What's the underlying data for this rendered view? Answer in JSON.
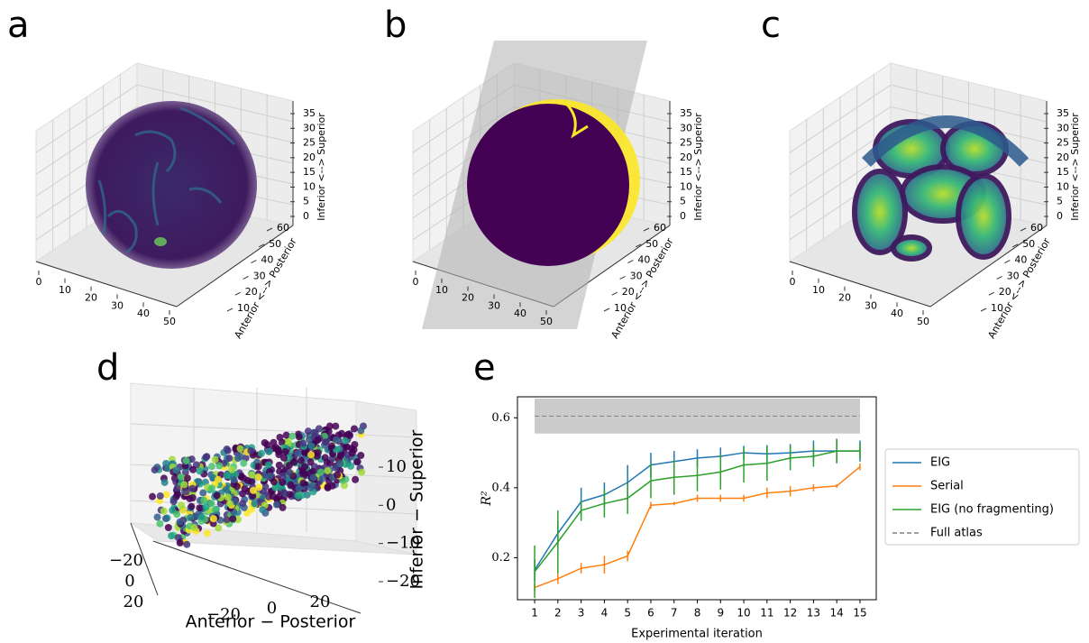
{
  "chart_data": [
    {
      "type": "volume3d",
      "panel": "a",
      "xticks": [
        0,
        10,
        20,
        30,
        40,
        50
      ],
      "yticks": [
        10,
        20,
        30,
        40,
        50,
        60
      ],
      "zticks": [
        0,
        5,
        10,
        15,
        20,
        25,
        30,
        35
      ],
      "ylabel": "Anterior <--> Posterior",
      "zlabel": "Inferior <--> Superior"
    },
    {
      "type": "volume3d",
      "panel": "b",
      "xticks": [
        0,
        10,
        20,
        30,
        40,
        50
      ],
      "yticks": [
        10,
        20,
        30,
        40,
        50,
        60
      ],
      "zticks": [
        0,
        5,
        10,
        15,
        20,
        25,
        30,
        35
      ],
      "ylabel": "Anterior <--> Posterior",
      "zlabel": "Inferior <--> Superior"
    },
    {
      "type": "volume3d",
      "panel": "c",
      "xticks": [
        0,
        10,
        20,
        30,
        40,
        50
      ],
      "yticks": [
        10,
        20,
        30,
        40,
        50,
        60
      ],
      "zticks": [
        0,
        5,
        10,
        15,
        20,
        25,
        30,
        35
      ],
      "ylabel": "Anterior <--> Posterior",
      "zlabel": "Inferior <--> Superior"
    },
    {
      "type": "scatter3d",
      "panel": "d",
      "xlabel": "Anterior − Posterior",
      "zlabel": "Inferior − Superior",
      "xticks": [
        {
          "value": -20,
          "label": "−20"
        },
        0,
        20
      ],
      "yticks": [
        {
          "value": -20,
          "label": "−20"
        },
        0,
        20
      ],
      "zticks": [
        {
          "value": -20,
          "label": "−20"
        },
        {
          "value": -10,
          "label": "−10"
        },
        0,
        10
      ]
    },
    {
      "type": "line",
      "panel": "e",
      "xlabel": "Experimental iteration",
      "ylabel": "R²",
      "x": [
        1,
        2,
        3,
        4,
        5,
        6,
        7,
        8,
        9,
        10,
        11,
        12,
        13,
        14,
        15
      ],
      "xlim": [
        0.26,
        15.7
      ],
      "ylim": [
        0.08,
        0.66
      ],
      "yticks": [
        0.2,
        0.4,
        0.6
      ],
      "series": [
        {
          "name": "EIG",
          "color": "#1f77b4",
          "values": [
            0.165,
            0.27,
            0.36,
            0.38,
            0.415,
            0.465,
            0.475,
            0.485,
            0.49,
            0.5,
            0.497,
            0.5,
            0.505,
            0.505,
            0.505
          ],
          "errors": [
            0.03,
            0.035,
            0.04,
            0.035,
            0.05,
            0.035,
            0.03,
            0.025,
            0.025,
            0.02,
            0.025,
            0.025,
            0.03,
            0.035,
            0.03
          ]
        },
        {
          "name": "Serial",
          "color": "#ff7f0e",
          "values": [
            0.115,
            0.14,
            0.17,
            0.18,
            0.205,
            0.35,
            0.355,
            0.37,
            0.37,
            0.37,
            0.385,
            0.39,
            0.4,
            0.405,
            0.46
          ],
          "errors": [
            0.01,
            0.015,
            0.015,
            0.025,
            0.015,
            0.01,
            0.005,
            0.01,
            0.01,
            0.01,
            0.015,
            0.015,
            0.01,
            0.005,
            0.01
          ]
        },
        {
          "name": "EIG (no fragmenting)",
          "color": "#2ca02c",
          "values": [
            0.16,
            0.245,
            0.335,
            0.355,
            0.37,
            0.42,
            0.43,
            0.435,
            0.445,
            0.465,
            0.47,
            0.485,
            0.49,
            0.505,
            0.505
          ],
          "errors": [
            0.075,
            0.09,
            0.03,
            0.04,
            0.045,
            0.05,
            0.05,
            0.045,
            0.05,
            0.05,
            0.05,
            0.035,
            0.03,
            0.035,
            0.02
          ]
        }
      ],
      "reference": {
        "name": "Full atlas",
        "value": 0.605,
        "band": [
          0.555,
          0.655
        ],
        "color": "#808080"
      }
    }
  ]
}
